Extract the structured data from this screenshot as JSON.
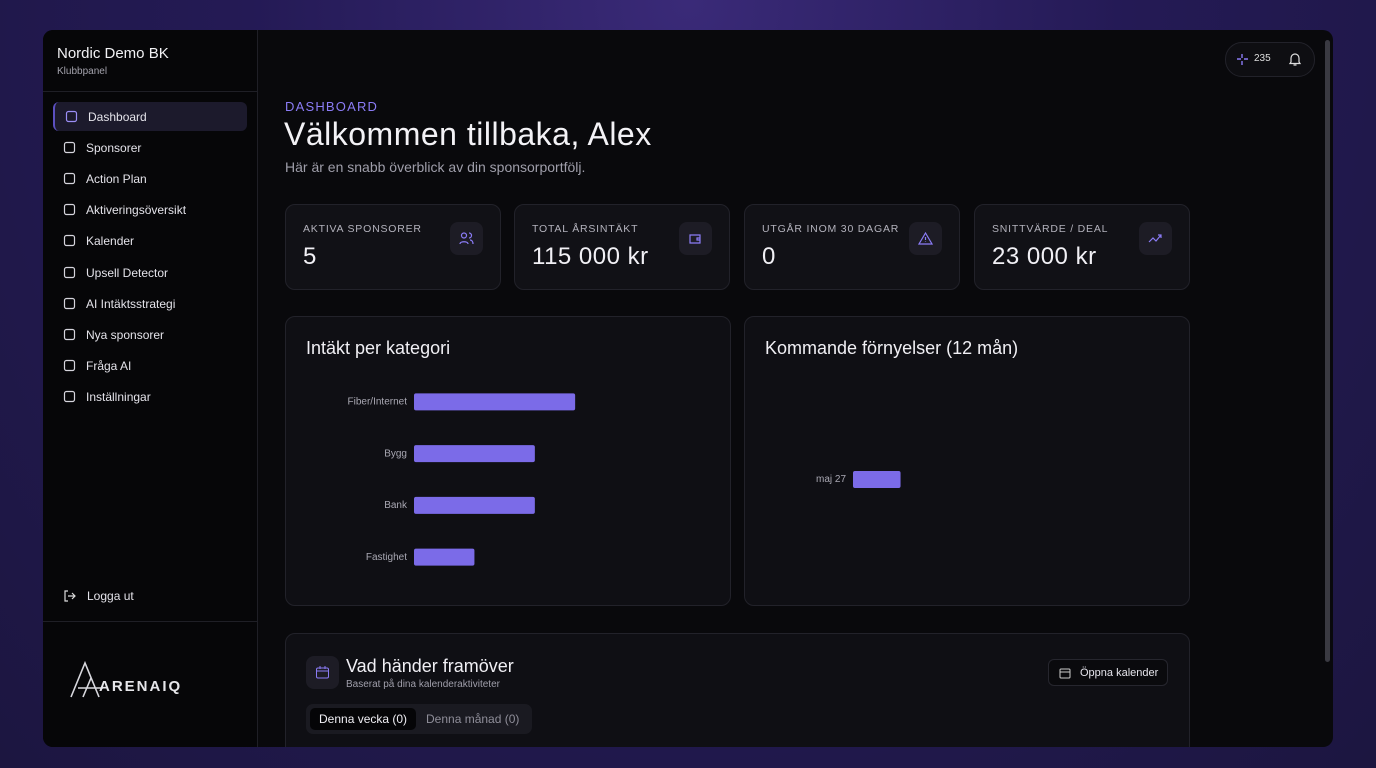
{
  "sidebar": {
    "brand": "Nordic Demo BK",
    "subtitle": "Klubbpanel",
    "nav": [
      "Dashboard",
      "Sponsorer",
      "Action Plan",
      "Aktiveringsöversikt",
      "Kalender",
      "Upsell Detector",
      "AI Intäktsstrategi",
      "Nya sponsorer",
      "Fråga AI",
      "Inställningar"
    ],
    "logout": "Logga ut",
    "logo": "ARENAIQ"
  },
  "topbar": {
    "credits": "235"
  },
  "header": {
    "eyebrow": "DASHBOARD",
    "title": "Välkommen tillbaka, Alex",
    "subtitle": "Här är en snabb överblick av din sponsorportfölj."
  },
  "stats": [
    {
      "label": "AKTIVA SPONSORER",
      "value": "5"
    },
    {
      "label": "TOTAL ÅRSINTÄKT",
      "value": "115 000 kr"
    },
    {
      "label": "UTGÅR INOM 30 DAGAR",
      "value": "0"
    },
    {
      "label": "SNITTVÄRDE / DEAL",
      "value": "23 000 kr"
    }
  ],
  "chart_data": [
    {
      "type": "hbar",
      "title": "Intäkt per kategori",
      "categories": [
        "Fiber/Internet",
        "Bygg",
        "Bank",
        "Fastighet"
      ],
      "values": [
        40000,
        30000,
        30000,
        15000
      ],
      "color": "#7b6be8",
      "xlim": [
        0,
        70000
      ]
    },
    {
      "type": "hbar",
      "title": "Kommande förnyelser (12 mån)",
      "categories": [
        "maj 27"
      ],
      "values": [
        15000
      ],
      "color": "#7b6be8",
      "xlim": [
        0,
        100000
      ]
    }
  ],
  "upcoming": {
    "title": "Vad händer framöver",
    "subtitle": "Baserat på dina kalenderaktiviteter",
    "button": "Öppna kalender",
    "tabs": [
      "Denna vecka (0)",
      "Denna månad (0)"
    ]
  }
}
